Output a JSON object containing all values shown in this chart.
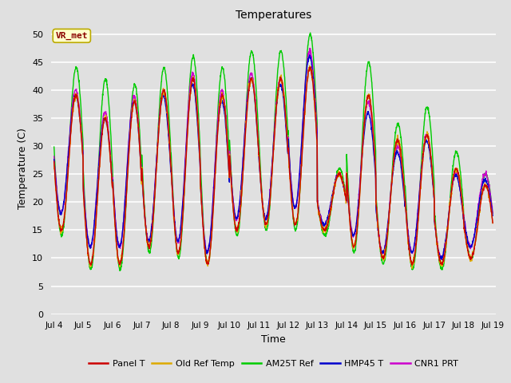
{
  "title": "Temperatures",
  "xlabel": "Time",
  "ylabel": "Temperature (C)",
  "ylim": [
    0,
    52
  ],
  "yticks": [
    0,
    5,
    10,
    15,
    20,
    25,
    30,
    35,
    40,
    45,
    50
  ],
  "x_tick_labels": [
    "Jul 4",
    "Jul 5",
    "Jul 6",
    "Jul 7",
    "Jul 8",
    "Jul 9",
    "Jul 10",
    "Jul 11",
    "Jul 12",
    "Jul 13",
    "Jul 14",
    "Jul 15",
    "Jul 16",
    "Jul 17",
    "Jul 18",
    "Jul 19"
  ],
  "annotation_text": "VR_met",
  "annotation_bg": "#ffffcc",
  "annotation_border": "#bbaa00",
  "annotation_text_color": "#8b0000",
  "bg_color": "#e0e0e0",
  "plot_bg_color": "#e0e0e0",
  "grid_color": "#ffffff",
  "colors": {
    "Panel T": "#cc0000",
    "Old Ref Temp": "#ddaa00",
    "AM25T Ref": "#00cc00",
    "HMP45 T": "#0000cc",
    "CNR1 PRT": "#cc00cc"
  },
  "amp_pattern_red": [
    24,
    26,
    29,
    28,
    31,
    30,
    27,
    26,
    28,
    10,
    27,
    21,
    23,
    17,
    13
  ],
  "min_pattern_red": [
    15,
    9,
    9,
    12,
    11,
    9,
    15,
    16,
    16,
    15,
    12,
    10,
    9,
    9,
    10
  ],
  "amp_pattern_green": [
    30,
    34,
    33,
    33,
    36,
    35,
    33,
    32,
    35,
    12,
    34,
    25,
    29,
    21,
    15
  ],
  "min_pattern_green": [
    14,
    8,
    8,
    11,
    10,
    9,
    14,
    15,
    15,
    14,
    11,
    9,
    8,
    8,
    10
  ],
  "amp_pattern_blue": [
    21,
    23,
    26,
    26,
    28,
    27,
    25,
    24,
    27,
    9,
    22,
    18,
    20,
    15,
    12
  ],
  "min_pattern_blue": [
    18,
    12,
    12,
    13,
    13,
    11,
    17,
    17,
    19,
    16,
    14,
    11,
    11,
    10,
    12
  ],
  "amp_pattern_purple": [
    22,
    24,
    27,
    27,
    30,
    29,
    26,
    25,
    28,
    9,
    24,
    19,
    21,
    15,
    13
  ],
  "min_pattern_purple": [
    18,
    12,
    12,
    13,
    13,
    11,
    17,
    17,
    19,
    16,
    14,
    11,
    11,
    10,
    12
  ],
  "phase_green": -0.05,
  "phase_blue": 0.08,
  "phase_purple": 0.06
}
